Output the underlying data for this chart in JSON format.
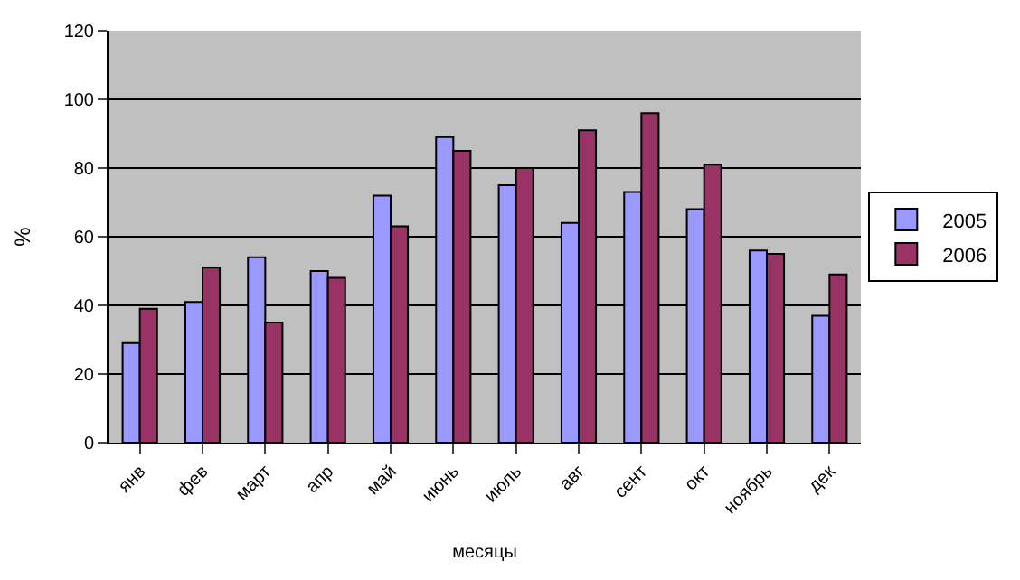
{
  "chart_data": {
    "type": "bar",
    "xlabel": "месяцы",
    "ylabel": "%",
    "categories": [
      "янв",
      "фев",
      "март",
      "апр",
      "май",
      "июнь",
      "июль",
      "авг",
      "сент",
      "окт",
      "ноябрь",
      "дек"
    ],
    "series": [
      {
        "name": "2005",
        "color": "#9999ff",
        "values": [
          29,
          41,
          54,
          50,
          72,
          89,
          75,
          64,
          73,
          68,
          56,
          37
        ]
      },
      {
        "name": "2006",
        "color": "#993366",
        "values": [
          39,
          51,
          35,
          48,
          63,
          85,
          80,
          91,
          96,
          81,
          55,
          49
        ]
      }
    ],
    "ylim": [
      0,
      120
    ],
    "yticks": [
      0,
      20,
      40,
      60,
      80,
      100,
      120
    ],
    "grid": "y",
    "legend": "right"
  }
}
